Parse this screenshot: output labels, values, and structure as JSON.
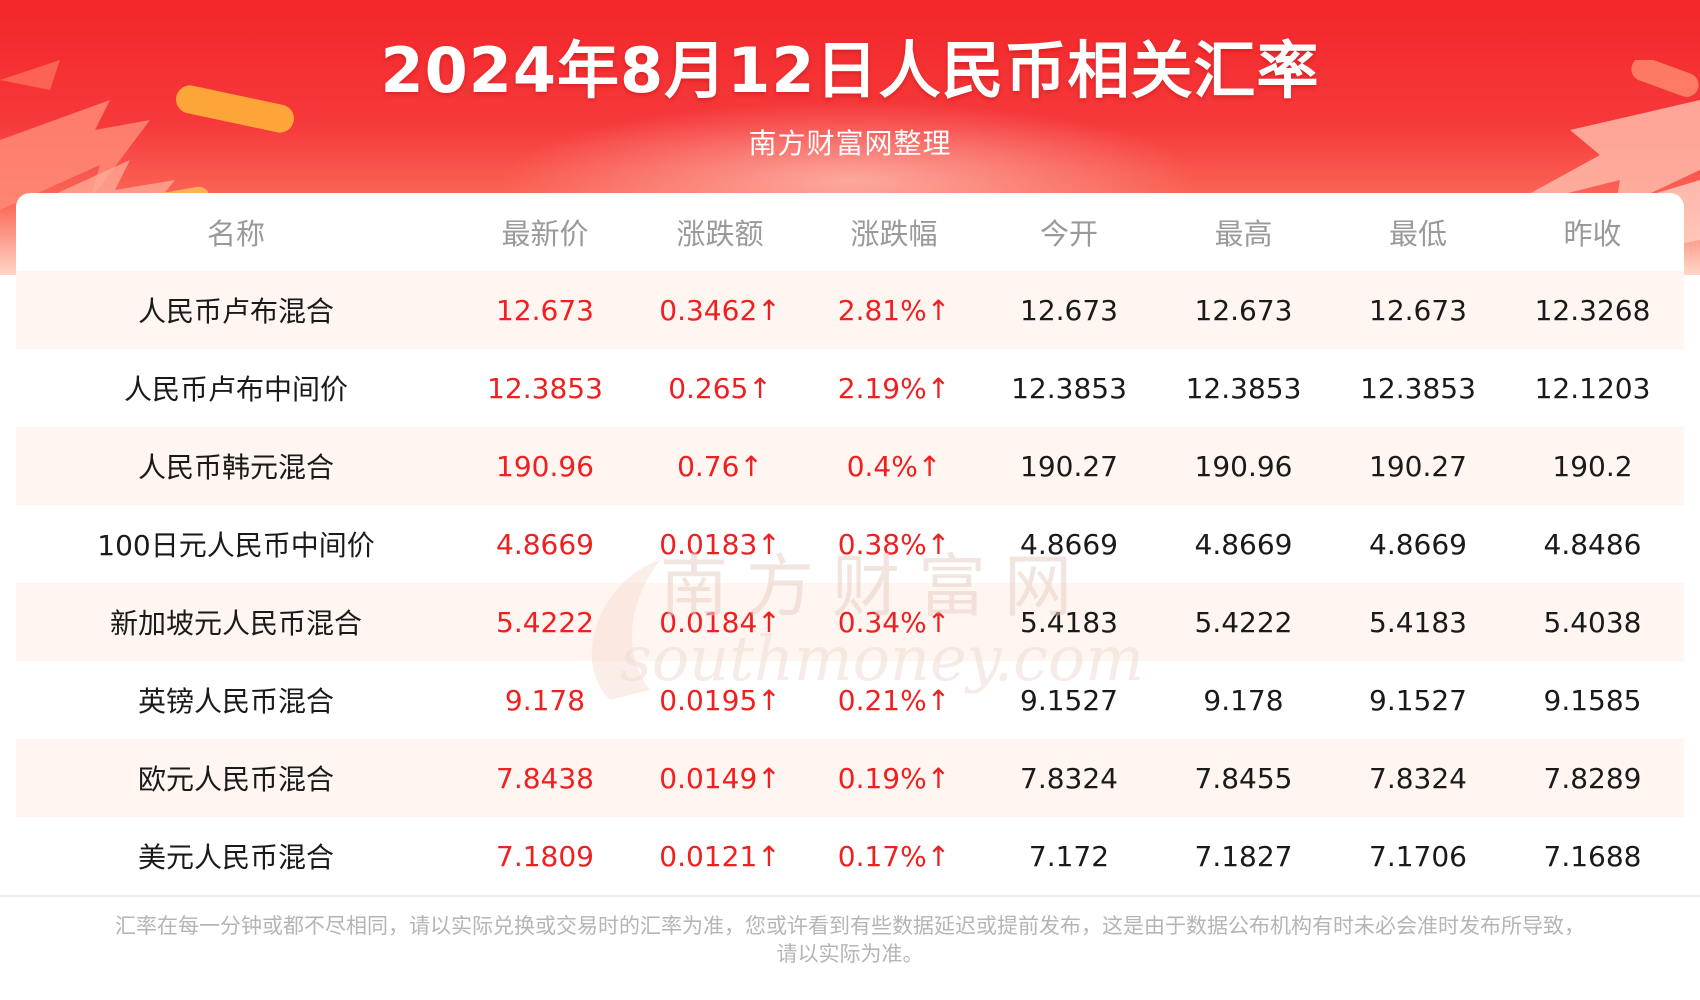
{
  "header": {
    "title": "2024年8月12日人民币相关汇率",
    "subtitle": "南方财富网整理"
  },
  "table": {
    "columns": [
      "名称",
      "最新价",
      "涨跌额",
      "涨跌幅",
      "今开",
      "最高",
      "最低",
      "昨收"
    ],
    "rows": [
      [
        "人民币卢布混合",
        "12.673",
        "0.3462↑",
        "2.81%↑",
        "12.673",
        "12.673",
        "12.673",
        "12.3268"
      ],
      [
        "人民币卢布中间价",
        "12.3853",
        "0.265↑",
        "2.19%↑",
        "12.3853",
        "12.3853",
        "12.3853",
        "12.1203"
      ],
      [
        "人民币韩元混合",
        "190.96",
        "0.76↑",
        "0.4%↑",
        "190.27",
        "190.96",
        "190.27",
        "190.2"
      ],
      [
        "100日元人民币中间价",
        "4.8669",
        "0.0183↑",
        "0.38%↑",
        "4.8669",
        "4.8669",
        "4.8669",
        "4.8486"
      ],
      [
        "新加坡元人民币混合",
        "5.4222",
        "0.0184↑",
        "0.34%↑",
        "5.4183",
        "5.4222",
        "5.4183",
        "5.4038"
      ],
      [
        "英镑人民币混合",
        "9.178",
        "0.0195↑",
        "0.21%↑",
        "9.1527",
        "9.178",
        "9.1527",
        "9.1585"
      ],
      [
        "欧元人民币混合",
        "7.8438",
        "0.0149↑",
        "0.19%↑",
        "7.8324",
        "7.8455",
        "7.8324",
        "7.8289"
      ],
      [
        "美元人民币混合",
        "7.1809",
        "0.0121↑",
        "0.17%↑",
        "7.172",
        "7.1827",
        "7.1706",
        "7.1688"
      ]
    ]
  },
  "watermark": {
    "cn": "南方财富网",
    "en": "southmoney.com"
  },
  "footer": {
    "line1": "汇率在每一分钟或都不尽相同，请以实际兑换或交易时的汇率为准，您或许看到有些数据延迟或提前发布，这是由于数据公布机构有时未必会准时发布所导致，",
    "line2": "请以实际为准。"
  },
  "colors": {
    "banner_red": "#f3262a",
    "up_red": "#f02020",
    "row_tint": "#fff5f1",
    "header_text": "#9a9a9a"
  }
}
